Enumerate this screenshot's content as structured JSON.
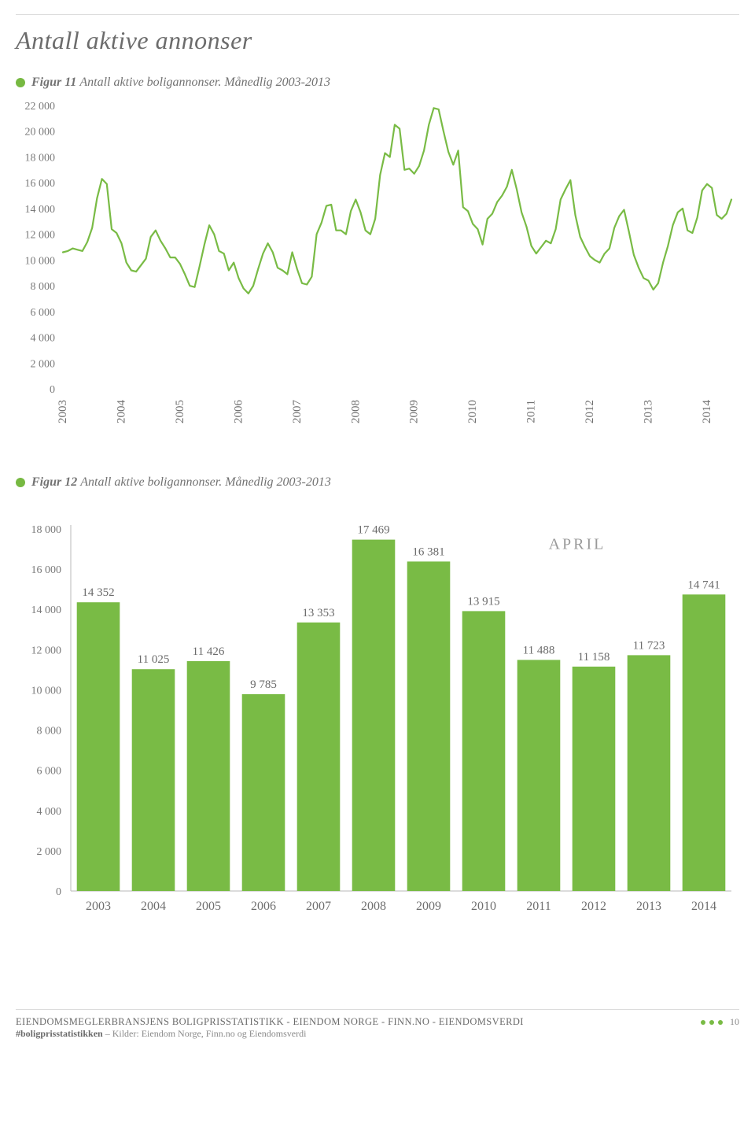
{
  "page": {
    "title": "Antall aktive annonser",
    "accent_color": "#77b942",
    "text_muted": "#7a7a7a",
    "rule_color": "#dcdcdc",
    "page_number": "10"
  },
  "figure11": {
    "dot_color": "#77b942",
    "label_bold": "Figur 11",
    "label_rest": "Antall aktive boligannonser. Månedlig 2003-2013",
    "type": "line",
    "line_color": "#79bb45",
    "line_width": 2.2,
    "background_color": "#ffffff",
    "ylim": [
      0,
      22000
    ],
    "ytick_step": 2000,
    "ytick_labels": [
      "0",
      "2 000",
      "4 000",
      "6 000",
      "8 000",
      "10 000",
      "12 000",
      "14 000",
      "16 000",
      "18 000",
      "20 000",
      "22 000"
    ],
    "x_start_year": 2003,
    "x_end_year": 2014,
    "x_labels": [
      "2003",
      "2004",
      "2005",
      "2006",
      "2007",
      "2008",
      "2009",
      "2010",
      "2011",
      "2012",
      "2013",
      "2014"
    ],
    "monthly_values": [
      10600,
      10700,
      10900,
      10800,
      10700,
      11400,
      12500,
      14800,
      16300,
      15900,
      12400,
      12100,
      11300,
      9800,
      9200,
      9100,
      9600,
      10100,
      11800,
      12300,
      11500,
      10900,
      10200,
      10200,
      9700,
      8900,
      8000,
      7900,
      9500,
      11200,
      12700,
      12000,
      10700,
      10500,
      9200,
      9800,
      8600,
      7800,
      7400,
      8000,
      9300,
      10500,
      11300,
      10600,
      9400,
      9200,
      8900,
      10600,
      9300,
      8200,
      8100,
      8700,
      12000,
      12900,
      14200,
      14300,
      12300,
      12300,
      12000,
      13800,
      14700,
      13700,
      12300,
      12000,
      13200,
      16600,
      18300,
      18000,
      20500,
      20200,
      17000,
      17100,
      16700,
      17300,
      18500,
      20500,
      21800,
      21700,
      20000,
      18400,
      17400,
      18500,
      14100,
      13800,
      12800,
      12400,
      11200,
      13200,
      13600,
      14500,
      15000,
      15700,
      17000,
      15500,
      13700,
      12600,
      11100,
      10500,
      11000,
      11500,
      11300,
      12400,
      14700,
      15500,
      16200,
      13500,
      11800,
      11000,
      10300,
      10000,
      9800,
      10500,
      10900,
      12500,
      13400,
      13900,
      12200,
      10400,
      9400,
      8600,
      8400,
      7700,
      8200,
      9800,
      11100,
      12700,
      13700,
      14000,
      12300,
      12100,
      13300,
      15400,
      15900,
      15600,
      13500,
      13200,
      13600,
      14700
    ]
  },
  "figure12": {
    "dot_color": "#77b942",
    "label_bold": "Figur 12",
    "label_rest": "Antall aktive boligannonser. Månedlig 2003-2013",
    "type": "bar",
    "bar_color": "#79bb45",
    "axis_color": "#b9b9b9",
    "background_color": "#ffffff",
    "ylim": [
      0,
      18000
    ],
    "ytick_step": 2000,
    "ytick_labels": [
      "0",
      "2 000",
      "4 000",
      "6 000",
      "8 000",
      "10 000",
      "12 000",
      "14 000",
      "16 000",
      "18 000"
    ],
    "month_label": "APRIL",
    "categories": [
      "2003",
      "2004",
      "2005",
      "2006",
      "2007",
      "2008",
      "2009",
      "2010",
      "2011",
      "2012",
      "2013",
      "2014"
    ],
    "values": [
      14352,
      11025,
      11426,
      9785,
      13353,
      17469,
      16381,
      13915,
      11488,
      11158,
      11723,
      14741
    ],
    "value_labels": [
      "14 352",
      "11 025",
      "11 426",
      "9 785",
      "13 353",
      "17 469",
      "16 381",
      "13 915",
      "11 488",
      "11 158",
      "11 723",
      "14 741"
    ],
    "bar_width_ratio": 0.78
  },
  "footer": {
    "line1": "EIENDOMSMEGLERBRANSJENS BOLIGPRISSTATISTIKK - EIENDOM NORGE - FINN.NO - EIENDOMSVERDI",
    "hashtag": "#boligprisstatistikken",
    "sources_prefix": " – Kilder: ",
    "sources": "Eiendom Norge, Finn.no og Eiendomsverdi",
    "dot_color": "#79bb45"
  }
}
